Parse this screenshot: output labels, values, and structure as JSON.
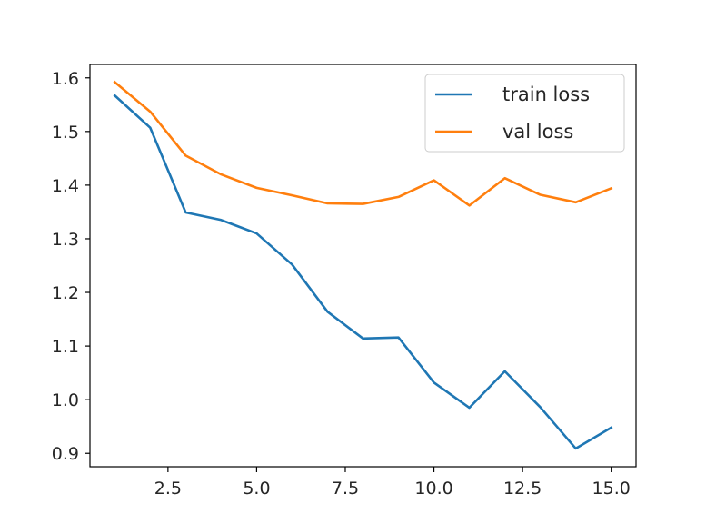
{
  "chart_data": {
    "type": "line",
    "title": "",
    "xlabel": "",
    "ylabel": "",
    "xlim": [
      0.3,
      15.7
    ],
    "ylim": [
      0.875,
      1.625
    ],
    "xticks": [
      2.5,
      5.0,
      7.5,
      10.0,
      12.5,
      15.0
    ],
    "xtick_labels": [
      "2.5",
      "5.0",
      "7.5",
      "10.0",
      "12.5",
      "15.0"
    ],
    "yticks": [
      0.9,
      1.0,
      1.1,
      1.2,
      1.3,
      1.4,
      1.5,
      1.6
    ],
    "ytick_labels": [
      "0.9",
      "1.0",
      "1.1",
      "1.2",
      "1.3",
      "1.4",
      "1.5",
      "1.6"
    ],
    "grid": false,
    "legend_position": "top-right",
    "x": [
      1,
      2,
      3,
      4,
      5,
      6,
      7,
      8,
      9,
      10,
      11,
      12,
      13,
      14,
      15
    ],
    "series": [
      {
        "name": "train loss",
        "color": "#1f77b4",
        "values": [
          1.567,
          1.507,
          1.349,
          1.335,
          1.31,
          1.252,
          1.164,
          1.114,
          1.116,
          1.032,
          0.985,
          1.053,
          0.986,
          0.909,
          0.948
        ]
      },
      {
        "name": "val loss",
        "color": "#ff7f0e",
        "values": [
          1.592,
          1.537,
          1.455,
          1.42,
          1.395,
          1.381,
          1.366,
          1.365,
          1.378,
          1.409,
          1.362,
          1.413,
          1.382,
          1.368,
          1.394
        ]
      }
    ]
  }
}
